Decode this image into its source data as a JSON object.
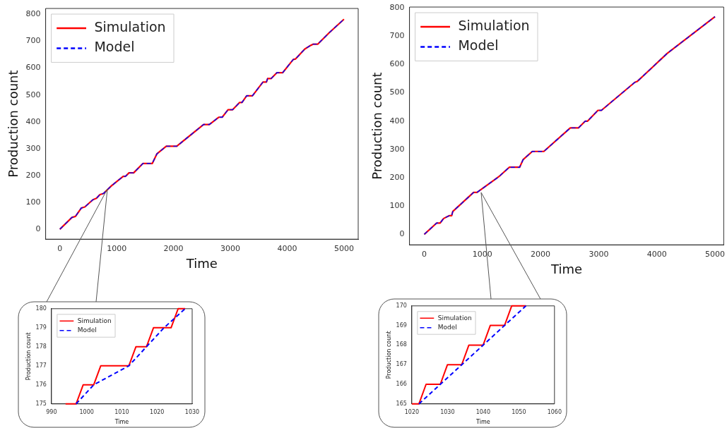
{
  "chart_data": [
    {
      "type": "line",
      "xlabel": "Time",
      "ylabel": "Production count",
      "xlim": [
        -250,
        5250
      ],
      "ylim": [
        -37,
        822
      ],
      "xticks": [
        0,
        1000,
        2000,
        3000,
        4000,
        5000
      ],
      "yticks": [
        0,
        100,
        200,
        300,
        400,
        500,
        600,
        700,
        800
      ],
      "legend": "top left",
      "grid": false,
      "series": [
        {
          "name": "Simulation",
          "color": "#ff0000",
          "line_style": "solid",
          "x": [
            0,
            213,
            275,
            377,
            439,
            582,
            643,
            705,
            766,
            910,
            1115,
            1156,
            1217,
            1299,
            1463,
            1627,
            1709,
            1873,
            2057,
            2529,
            2631,
            2795,
            2857,
            2959,
            3041,
            3164,
            3205,
            3287,
            3389,
            3574,
            3635,
            3656,
            3717,
            3820,
            3922,
            4107,
            4148,
            4311,
            4393,
            4455,
            4537,
            4742,
            5000
          ],
          "values": [
            0,
            44,
            48,
            79,
            83,
            110,
            115,
            129,
            133,
            162,
            197,
            197,
            210,
            210,
            245,
            245,
            281,
            309,
            309,
            390,
            390,
            417,
            417,
            445,
            445,
            472,
            472,
            497,
            497,
            548,
            548,
            561,
            561,
            583,
            583,
            632,
            634,
            671,
            682,
            689,
            689,
            732,
            782
          ]
        },
        {
          "name": "Model",
          "color": "#0000ff",
          "line_style": "dashed",
          "x": [
            0,
            213,
            275,
            377,
            439,
            582,
            643,
            705,
            766,
            910,
            1115,
            1156,
            1217,
            1299,
            1463,
            1627,
            1709,
            1873,
            2057,
            2529,
            2631,
            2795,
            2857,
            2959,
            3041,
            3164,
            3205,
            3287,
            3389,
            3574,
            3635,
            3656,
            3717,
            3820,
            3922,
            4107,
            4148,
            4311,
            4393,
            4455,
            4537,
            4742,
            5000
          ],
          "values": [
            0,
            44,
            48,
            79,
            83,
            110,
            115,
            129,
            133,
            162,
            197,
            197,
            210,
            210,
            245,
            245,
            281,
            309,
            309,
            390,
            390,
            417,
            417,
            445,
            445,
            472,
            472,
            497,
            497,
            548,
            548,
            561,
            561,
            583,
            583,
            632,
            634,
            671,
            682,
            689,
            689,
            732,
            782
          ]
        }
      ]
    },
    {
      "type": "line",
      "xlabel": "Time",
      "ylabel": "Production count",
      "xlim": [
        -254,
        5150
      ],
      "ylim": [
        -37,
        803
      ],
      "xticks": [
        0,
        1000,
        2000,
        3000,
        4000,
        5000
      ],
      "yticks": [
        0,
        100,
        200,
        300,
        400,
        500,
        600,
        700,
        800
      ],
      "legend": "top left",
      "grid": false,
      "series": [
        {
          "name": "Simulation",
          "color": "#ff0000",
          "line_style": "solid",
          "x": [
            0,
            214,
            273,
            333,
            432,
            471,
            491,
            848,
            907,
            1284,
            1462,
            1640,
            1700,
            1858,
            2056,
            2512,
            2651,
            2769,
            2809,
            2987,
            3047,
            3621,
            3661,
            3819,
            4176,
            5000
          ],
          "values": [
            0,
            40,
            40,
            56,
            66,
            66,
            81,
            148,
            148,
            204,
            237,
            237,
            264,
            293,
            293,
            376,
            376,
            400,
            400,
            438,
            438,
            537,
            540,
            570,
            639,
            769
          ]
        },
        {
          "name": "Model",
          "color": "#0000ff",
          "line_style": "dashed",
          "x": [
            0,
            214,
            273,
            333,
            432,
            471,
            491,
            848,
            907,
            1284,
            1462,
            1640,
            1700,
            1858,
            2056,
            2512,
            2651,
            2769,
            2809,
            2987,
            3047,
            3621,
            3661,
            3819,
            4176,
            5000
          ],
          "values": [
            0,
            40,
            40,
            56,
            66,
            66,
            81,
            148,
            148,
            204,
            237,
            237,
            264,
            293,
            293,
            376,
            376,
            400,
            400,
            438,
            438,
            537,
            540,
            570,
            639,
            769
          ]
        }
      ]
    },
    {
      "type": "line",
      "xlabel": "Time",
      "ylabel": "Production count",
      "xlim": [
        990,
        1030
      ],
      "ylim": [
        175,
        180
      ],
      "xticks": [
        990,
        1000,
        1010,
        1020,
        1030
      ],
      "yticks": [
        175,
        176,
        177,
        178,
        179,
        180
      ],
      "legend": "top left",
      "grid": false,
      "series": [
        {
          "name": "Simulation",
          "color": "#ff0000",
          "line_style": "solid",
          "x": [
            994,
            997,
            999,
            1002,
            1004,
            1012,
            1014,
            1017,
            1019,
            1024,
            1026,
            1028
          ],
          "values": [
            175,
            175,
            176,
            176,
            177,
            177,
            178,
            178,
            179,
            179,
            180,
            180
          ]
        },
        {
          "name": "Model",
          "color": "#0000ff",
          "line_style": "dashed",
          "x": [
            997,
            1002,
            1012,
            1017,
            1022,
            1028
          ],
          "values": [
            175,
            176,
            177,
            178,
            179,
            180
          ]
        }
      ]
    },
    {
      "type": "line",
      "xlabel": "Time",
      "ylabel": "Production count",
      "xlim": [
        1020,
        1060
      ],
      "ylim": [
        165,
        170
      ],
      "xticks": [
        1020,
        1030,
        1040,
        1050,
        1060
      ],
      "yticks": [
        165,
        166,
        167,
        168,
        169,
        170
      ],
      "legend": "top left",
      "grid": false,
      "series": [
        {
          "name": "Simulation",
          "color": "#ff0000",
          "line_style": "solid",
          "x": [
            1020,
            1022,
            1024,
            1028,
            1030,
            1034,
            1036,
            1040,
            1042,
            1046,
            1048,
            1052
          ],
          "values": [
            165,
            165,
            166,
            166,
            167,
            167,
            168,
            168,
            169,
            169,
            170,
            170
          ]
        },
        {
          "name": "Model",
          "color": "#0000ff",
          "line_style": "dashed",
          "x": [
            1022,
            1028,
            1034,
            1040,
            1046,
            1052
          ],
          "values": [
            165,
            166,
            167,
            168,
            169,
            170
          ]
        }
      ]
    }
  ]
}
